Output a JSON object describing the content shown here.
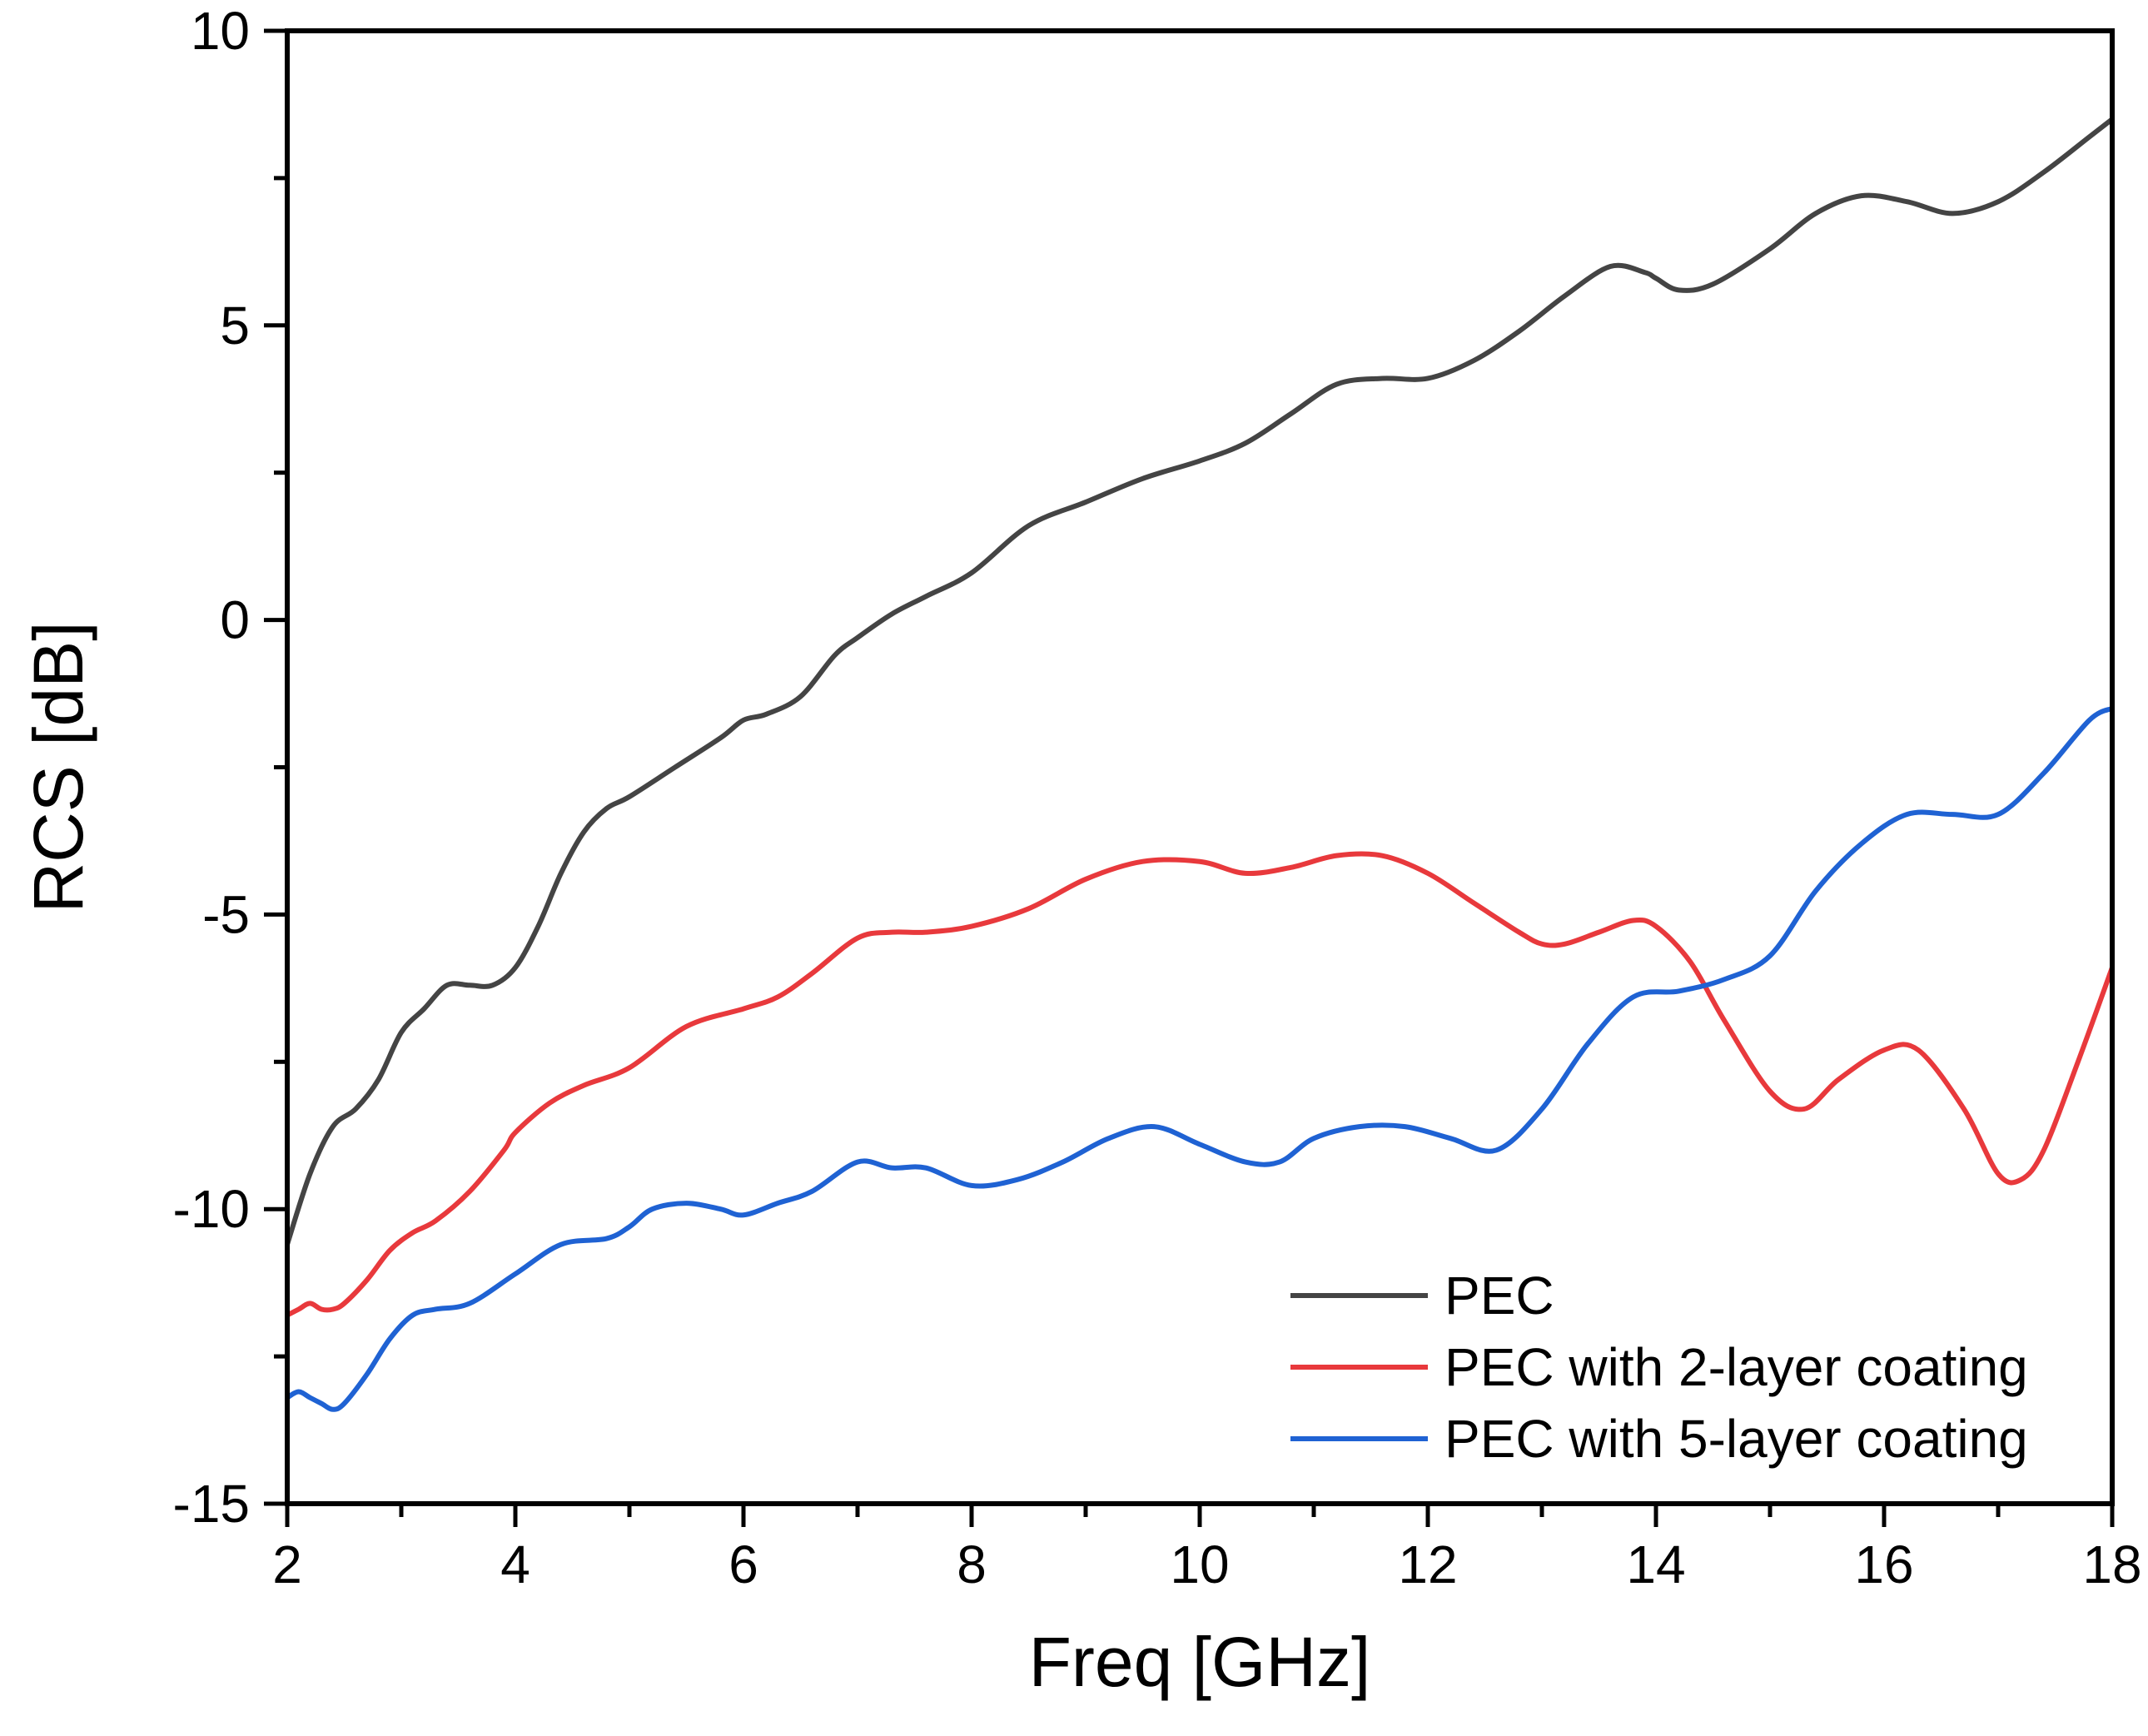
{
  "chart_data": {
    "type": "line",
    "title": "",
    "xlabel": "Freq [GHz]",
    "ylabel": "RCS [dB]",
    "xlim": [
      2,
      18
    ],
    "ylim": [
      -15,
      10
    ],
    "xticks": [
      2,
      4,
      6,
      8,
      10,
      12,
      14,
      16,
      18
    ],
    "yticks": [
      -15,
      -10,
      -5,
      0,
      5,
      10
    ],
    "grid": false,
    "legend_position": "bottom-right",
    "series": [
      {
        "name": "PEC",
        "color": "#444444",
        "x": [
          2.0,
          2.2,
          2.4,
          2.6,
          2.8,
          3.0,
          3.2,
          3.4,
          3.6,
          3.8,
          4.0,
          4.2,
          4.4,
          4.6,
          4.8,
          5.0,
          5.4,
          5.8,
          6.0,
          6.2,
          6.5,
          6.8,
          7.0,
          7.3,
          7.6,
          8.0,
          8.5,
          9.0,
          9.5,
          10.0,
          10.4,
          10.8,
          11.2,
          11.6,
          12.0,
          12.4,
          12.8,
          13.2,
          13.6,
          13.9,
          14.0,
          14.2,
          14.5,
          15.0,
          15.4,
          15.8,
          16.2,
          16.6,
          17.0,
          17.4,
          17.8,
          18.0
        ],
        "y": [
          -10.6,
          -9.4,
          -8.6,
          -8.3,
          -7.8,
          -7.0,
          -6.6,
          -6.2,
          -6.2,
          -6.2,
          -5.9,
          -5.2,
          -4.3,
          -3.6,
          -3.2,
          -3.0,
          -2.5,
          -2.0,
          -1.7,
          -1.6,
          -1.3,
          -0.6,
          -0.3,
          0.1,
          0.4,
          0.8,
          1.6,
          2.0,
          2.4,
          2.7,
          3.0,
          3.5,
          4.0,
          4.1,
          4.1,
          4.4,
          4.9,
          5.5,
          6.0,
          5.9,
          5.8,
          5.6,
          5.7,
          6.3,
          6.9,
          7.2,
          7.1,
          6.9,
          7.1,
          7.6,
          8.2,
          8.5
        ]
      },
      {
        "name": "PEC with 2-layer coating",
        "color": "#e8393c",
        "x": [
          2.0,
          2.1,
          2.2,
          2.3,
          2.4,
          2.5,
          2.7,
          2.9,
          3.1,
          3.3,
          3.6,
          3.9,
          4.0,
          4.3,
          4.6,
          5.0,
          5.5,
          6.0,
          6.3,
          6.6,
          7.0,
          7.3,
          7.6,
          8.0,
          8.5,
          9.0,
          9.5,
          10.0,
          10.4,
          10.8,
          11.2,
          11.6,
          12.0,
          12.4,
          12.8,
          13.0,
          13.2,
          13.5,
          13.8,
          14.0,
          14.3,
          14.6,
          15.0,
          15.3,
          15.6,
          16.0,
          16.3,
          16.7,
          17.0,
          17.2,
          17.4,
          17.7,
          18.0
        ],
        "y": [
          -11.8,
          -11.7,
          -11.6,
          -11.7,
          -11.7,
          -11.6,
          -11.2,
          -10.7,
          -10.4,
          -10.2,
          -9.7,
          -9.0,
          -8.7,
          -8.2,
          -7.9,
          -7.6,
          -6.9,
          -6.6,
          -6.4,
          -6.0,
          -5.4,
          -5.3,
          -5.3,
          -5.2,
          -4.9,
          -4.4,
          -4.1,
          -4.1,
          -4.3,
          -4.2,
          -4.0,
          -4.0,
          -4.3,
          -4.8,
          -5.3,
          -5.5,
          -5.5,
          -5.3,
          -5.1,
          -5.2,
          -5.8,
          -6.8,
          -8.0,
          -8.3,
          -7.8,
          -7.3,
          -7.3,
          -8.3,
          -9.4,
          -9.5,
          -9.0,
          -7.5,
          -5.9
        ]
      },
      {
        "name": "PEC with 5-layer coating",
        "color": "#1f62d3",
        "x": [
          2.0,
          2.1,
          2.2,
          2.3,
          2.4,
          2.5,
          2.7,
          2.9,
          3.1,
          3.3,
          3.6,
          4.0,
          4.4,
          4.8,
          5.0,
          5.2,
          5.5,
          5.8,
          6.0,
          6.3,
          6.6,
          7.0,
          7.3,
          7.6,
          8.0,
          8.4,
          8.8,
          9.2,
          9.6,
          10.0,
          10.4,
          10.7,
          11.0,
          11.4,
          11.8,
          12.2,
          12.6,
          13.0,
          13.4,
          13.8,
          14.2,
          14.6,
          15.0,
          15.4,
          15.8,
          16.2,
          16.6,
          17.0,
          17.4,
          17.8,
          18.0
        ],
        "y": [
          -13.2,
          -13.1,
          -13.2,
          -13.3,
          -13.4,
          -13.3,
          -12.8,
          -12.2,
          -11.8,
          -11.7,
          -11.6,
          -11.1,
          -10.6,
          -10.5,
          -10.3,
          -10.0,
          -9.9,
          -10.0,
          -10.1,
          -9.9,
          -9.7,
          -9.2,
          -9.3,
          -9.3,
          -9.6,
          -9.5,
          -9.2,
          -8.8,
          -8.6,
          -8.9,
          -9.2,
          -9.2,
          -8.8,
          -8.6,
          -8.6,
          -8.8,
          -9.0,
          -8.3,
          -7.2,
          -6.4,
          -6.3,
          -6.1,
          -5.7,
          -4.6,
          -3.8,
          -3.3,
          -3.3,
          -3.3,
          -2.6,
          -1.7,
          -1.5
        ]
      }
    ]
  }
}
